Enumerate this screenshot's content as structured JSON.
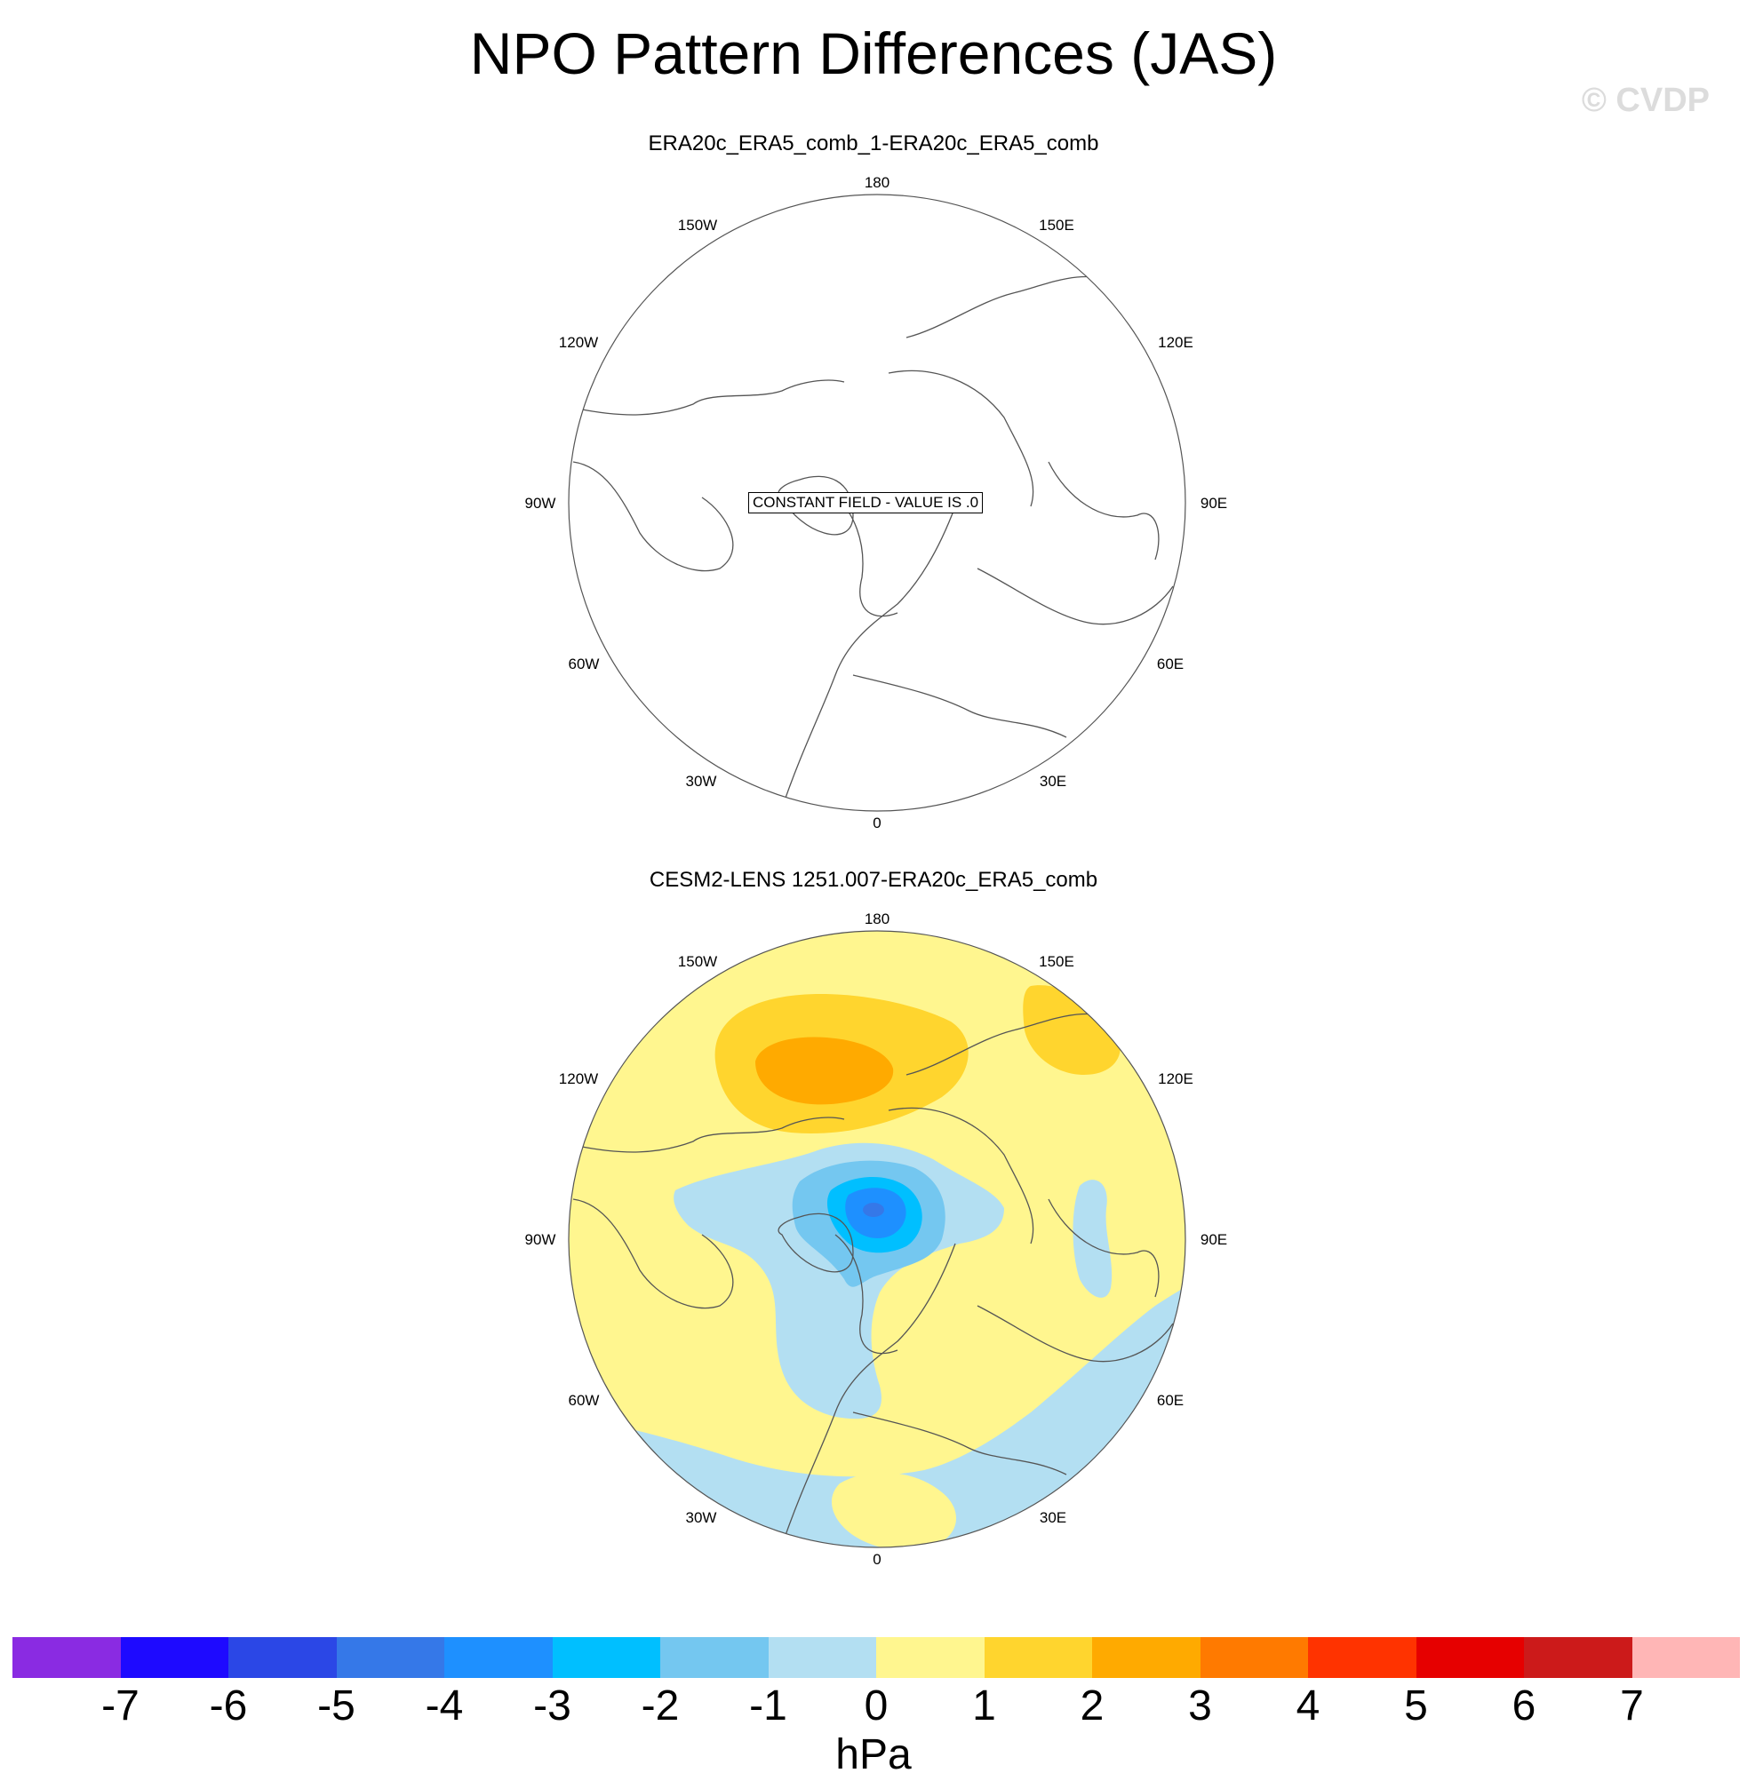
{
  "figure": {
    "title": "NPO Pattern Differences (JAS)",
    "watermark": "© CVDP"
  },
  "longitude_labels": {
    "top": "180",
    "top_left": "150W",
    "top_right": "150E",
    "upper_left": "120W",
    "upper_right": "120E",
    "left": "90W",
    "right": "90E",
    "lower_left": "60W",
    "lower_right": "60E",
    "bottom_left": "30W",
    "bottom_right": "30E",
    "bottom": "0"
  },
  "panels": [
    {
      "title": "ERA20c_ERA5_comb_1-ERA20c_ERA5_comb",
      "notice": "CONSTANT FIELD - VALUE IS .0",
      "field": "constant 0"
    },
    {
      "title": "CESM2-LENS 1251.007-ERA20c_ERA5_comb",
      "field": "NPO sea level pressure difference pattern"
    }
  ],
  "colorbar": {
    "units": "hPa",
    "ticks": [
      "-7",
      "-6",
      "-5",
      "-4",
      "-3",
      "-2",
      "-1",
      "0",
      "1",
      "2",
      "3",
      "4",
      "5",
      "6",
      "7"
    ],
    "colors": [
      "#8a2be2",
      "#1e0aff",
      "#2b47e6",
      "#3578e8",
      "#1e90ff",
      "#00bfff",
      "#74c7f0",
      "#b3dff2",
      "#fff68f",
      "#ffd52e",
      "#ffaa00",
      "#ff7a00",
      "#ff3300",
      "#e60000",
      "#cc1a1a",
      "#ffb6b6"
    ]
  }
}
